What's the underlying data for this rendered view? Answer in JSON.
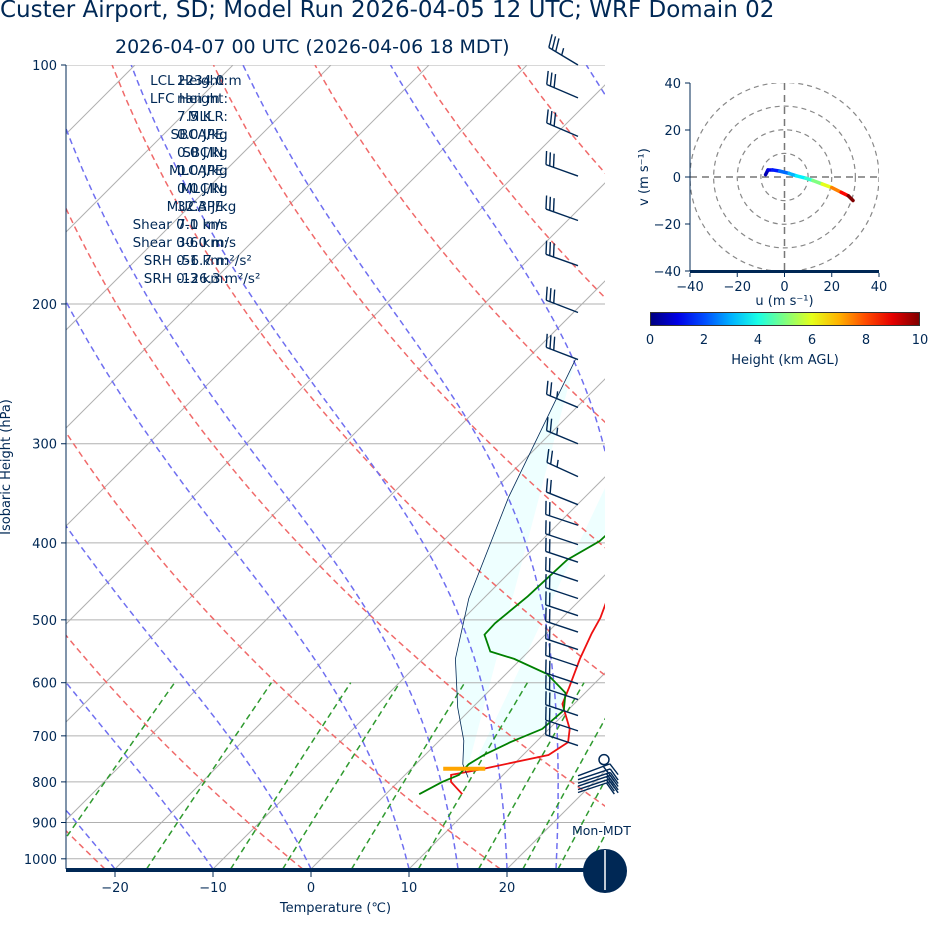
{
  "title": "Custer Airport, SD; Model Run 2026-04-05 12 UTC; WRF Domain 02",
  "subtitle": "2026-04-07 00 UTC  (2026-04-06 18 MDT)",
  "stats": [
    {
      "label": "LCL Height:",
      "value": "2234.0 m"
    },
    {
      "label": "LFC Height:",
      "value": "nan m"
    },
    {
      "label": "MLLR:",
      "value": "7.5 K"
    },
    {
      "label": "SBCAPE:",
      "value": "0.0 J/kg"
    },
    {
      "label": "SBCIN:",
      "value": "0.0 J/kg"
    },
    {
      "label": "MLCAPE:",
      "value": "0.0 J/kg"
    },
    {
      "label": "MLCIN:",
      "value": "0.0 J/kg"
    },
    {
      "label": "MUCAPE:",
      "value": "32.3 J/kg"
    },
    {
      "label": "Shear 0-1 km:",
      "value": "7.0 m/s"
    },
    {
      "label": "Shear 0-6 km:",
      "value": "30.0 m/s"
    },
    {
      "label": "SRH 0-1 km:",
      "value": "-56.7 m²/s²"
    },
    {
      "label": "SRH 0-3 km:",
      "value": "-126.3 m²/s²"
    }
  ],
  "station_label": "Mon-MDT",
  "colors": {
    "temperature": "#ee1111",
    "dewpoint": "#008000",
    "parcel": "#002855",
    "dry_adiabat": "#f06a6a",
    "moist_adiabat": "#6f6ff0",
    "mixing_ratio": "#2f9a2f",
    "cape_fill": "#eeffff",
    "lcl_marker": "#ffa500",
    "axis": "#002855"
  },
  "chart_data": [
    {
      "type": "line",
      "subtype": "skew-T log-p diagram",
      "xlabel": "Temperature (℃)",
      "ylabel": "Isobaric Height (hPa)",
      "xlim": [
        -25,
        30
      ],
      "ylim": [
        1030,
        100
      ],
      "y_scale": "log",
      "x_ticks": [
        -20,
        -10,
        0,
        10,
        20
      ],
      "y_ticks": [
        100,
        200,
        300,
        400,
        500,
        600,
        700,
        800,
        900,
        1000
      ],
      "grid": true,
      "series": [
        {
          "name": "",
          "role": "temperature",
          "points": [
            [
              7.8,
              829
            ],
            [
              5.4,
              800
            ],
            [
              4.7,
              784
            ],
            [
              7.2,
              771
            ],
            [
              12.6,
              740
            ],
            [
              13.3,
              713
            ],
            [
              12.1,
              686
            ],
            [
              8.8,
              638
            ],
            [
              7.8,
              608
            ],
            [
              6.0,
              560
            ],
            [
              4.6,
              520
            ],
            [
              3.9,
              497
            ],
            [
              1.7,
              450
            ],
            [
              0.0,
              420
            ],
            [
              -2.5,
              380
            ],
            [
              -5.1,
              345
            ],
            [
              -7.2,
              317
            ],
            [
              -8.6,
              297
            ],
            [
              -10.5,
              268
            ],
            [
              -11.5,
              250
            ],
            [
              -12.4,
              231
            ],
            [
              -10.3,
              193
            ],
            [
              -6.8,
              168
            ],
            [
              -3.2,
              147
            ],
            [
              2.3,
              128
            ],
            [
              5.2,
              116
            ],
            [
              8.9,
              104
            ],
            [
              10.0,
              100
            ]
          ]
        },
        {
          "name": "",
          "role": "dewpoint",
          "points": [
            [
              3.4,
              829
            ],
            [
              4.5,
              800
            ],
            [
              5.5,
              784
            ],
            [
              5.4,
              760
            ],
            [
              6.0,
              740
            ],
            [
              7.4,
              713
            ],
            [
              9.3,
              686
            ],
            [
              9.6,
              650
            ],
            [
              8.0,
              618
            ],
            [
              4.2,
              585
            ],
            [
              -0.7,
              560
            ],
            [
              -3.9,
              548
            ],
            [
              -6.2,
              522
            ],
            [
              -6.3,
              505
            ],
            [
              -5.7,
              467
            ],
            [
              -5.4,
              420
            ],
            [
              -4.0,
              398
            ],
            [
              -3.8,
              368
            ],
            [
              -5.3,
              330
            ],
            [
              -8.9,
              285
            ],
            [
              -11.0,
              255
            ],
            [
              -10.2,
              225
            ],
            [
              -10.1,
              194
            ],
            [
              -12.7,
              172
            ],
            [
              -10.0,
              146
            ],
            [
              -6.2,
              122
            ],
            [
              -1.8,
              100
            ]
          ]
        },
        {
          "name": "",
          "role": "parcel",
          "points": [
            [
              -25,
              235
            ],
            [
              -17.8,
              350
            ],
            [
              -11.5,
              470
            ],
            [
              -6.7,
              560
            ],
            [
              -1.5,
              645
            ],
            [
              2.5,
              710
            ],
            [
              4.8,
              760
            ],
            [
              6.7,
              790
            ]
          ]
        }
      ],
      "lcl": {
        "pressure_hpa": 770,
        "temperature_c": 5.4
      },
      "wind_barbs_kt": [
        {
          "p": 100,
          "u": 30,
          "v": -18
        },
        {
          "p": 110,
          "u": 28,
          "v": -12
        },
        {
          "p": 123,
          "u": 28,
          "v": -12
        },
        {
          "p": 138,
          "u": 28,
          "v": -10
        },
        {
          "p": 157,
          "u": 28,
          "v": -10
        },
        {
          "p": 179,
          "u": 28,
          "v": -10
        },
        {
          "p": 205,
          "u": 26,
          "v": -10
        },
        {
          "p": 235,
          "u": 26,
          "v": -10
        },
        {
          "p": 270,
          "u": 24,
          "v": -10
        },
        {
          "p": 300,
          "u": 24,
          "v": -10
        },
        {
          "p": 330,
          "u": 22,
          "v": -10
        },
        {
          "p": 358,
          "u": 20,
          "v": -8
        },
        {
          "p": 380,
          "u": 18,
          "v": -6
        },
        {
          "p": 402,
          "u": 18,
          "v": -6
        },
        {
          "p": 423,
          "u": 18,
          "v": -6
        },
        {
          "p": 447,
          "u": 18,
          "v": -6
        },
        {
          "p": 470,
          "u": 18,
          "v": -6
        },
        {
          "p": 494,
          "u": 18,
          "v": -6
        },
        {
          "p": 518,
          "u": 18,
          "v": -6
        },
        {
          "p": 545,
          "u": 18,
          "v": -6
        },
        {
          "p": 572,
          "u": 18,
          "v": -6
        },
        {
          "p": 602,
          "u": 18,
          "v": -6
        },
        {
          "p": 630,
          "u": 18,
          "v": -6
        },
        {
          "p": 660,
          "u": 18,
          "v": -6
        },
        {
          "p": 690,
          "u": 18,
          "v": -6
        },
        {
          "p": 720,
          "u": 18,
          "v": -6
        },
        {
          "p": 786,
          "u": -16,
          "v": -6
        },
        {
          "p": 795,
          "u": -18,
          "v": -6
        },
        {
          "p": 803,
          "u": -18,
          "v": -6
        },
        {
          "p": 810,
          "u": -18,
          "v": -6
        },
        {
          "p": 818,
          "u": -18,
          "v": -6
        },
        {
          "p": 825,
          "u": -18,
          "v": -6
        }
      ],
      "calm_wind_pressure_hpa": 750
    },
    {
      "type": "line",
      "subtype": "hodograph",
      "xlabel": "u (m s⁻¹)",
      "ylabel": "v (m s⁻¹)",
      "xlim": [
        -40,
        40
      ],
      "ylim": [
        -40,
        40
      ],
      "ticks": [
        -40,
        -20,
        0,
        20,
        40
      ],
      "rings": [
        10,
        20,
        30,
        40
      ],
      "points": [
        [
          -8,
          1,
          0.1
        ],
        [
          -7,
          3,
          0.5
        ],
        [
          -5,
          3,
          1
        ],
        [
          -2,
          2.5,
          1.5
        ],
        [
          2,
          1.5,
          2.3
        ],
        [
          5,
          0.5,
          3
        ],
        [
          9,
          -0.5,
          3.6
        ],
        [
          12,
          -1.5,
          4.2
        ],
        [
          16,
          -3,
          5
        ],
        [
          20,
          -4.5,
          6
        ],
        [
          24,
          -6.5,
          7.5
        ],
        [
          27,
          -8,
          8.7
        ],
        [
          29,
          -10,
          10
        ]
      ]
    }
  ],
  "colorbar": {
    "label": "Height (km AGL)",
    "ticks": [
      "0",
      "2",
      "4",
      "6",
      "8",
      "10"
    ],
    "min": 0,
    "max": 10
  }
}
